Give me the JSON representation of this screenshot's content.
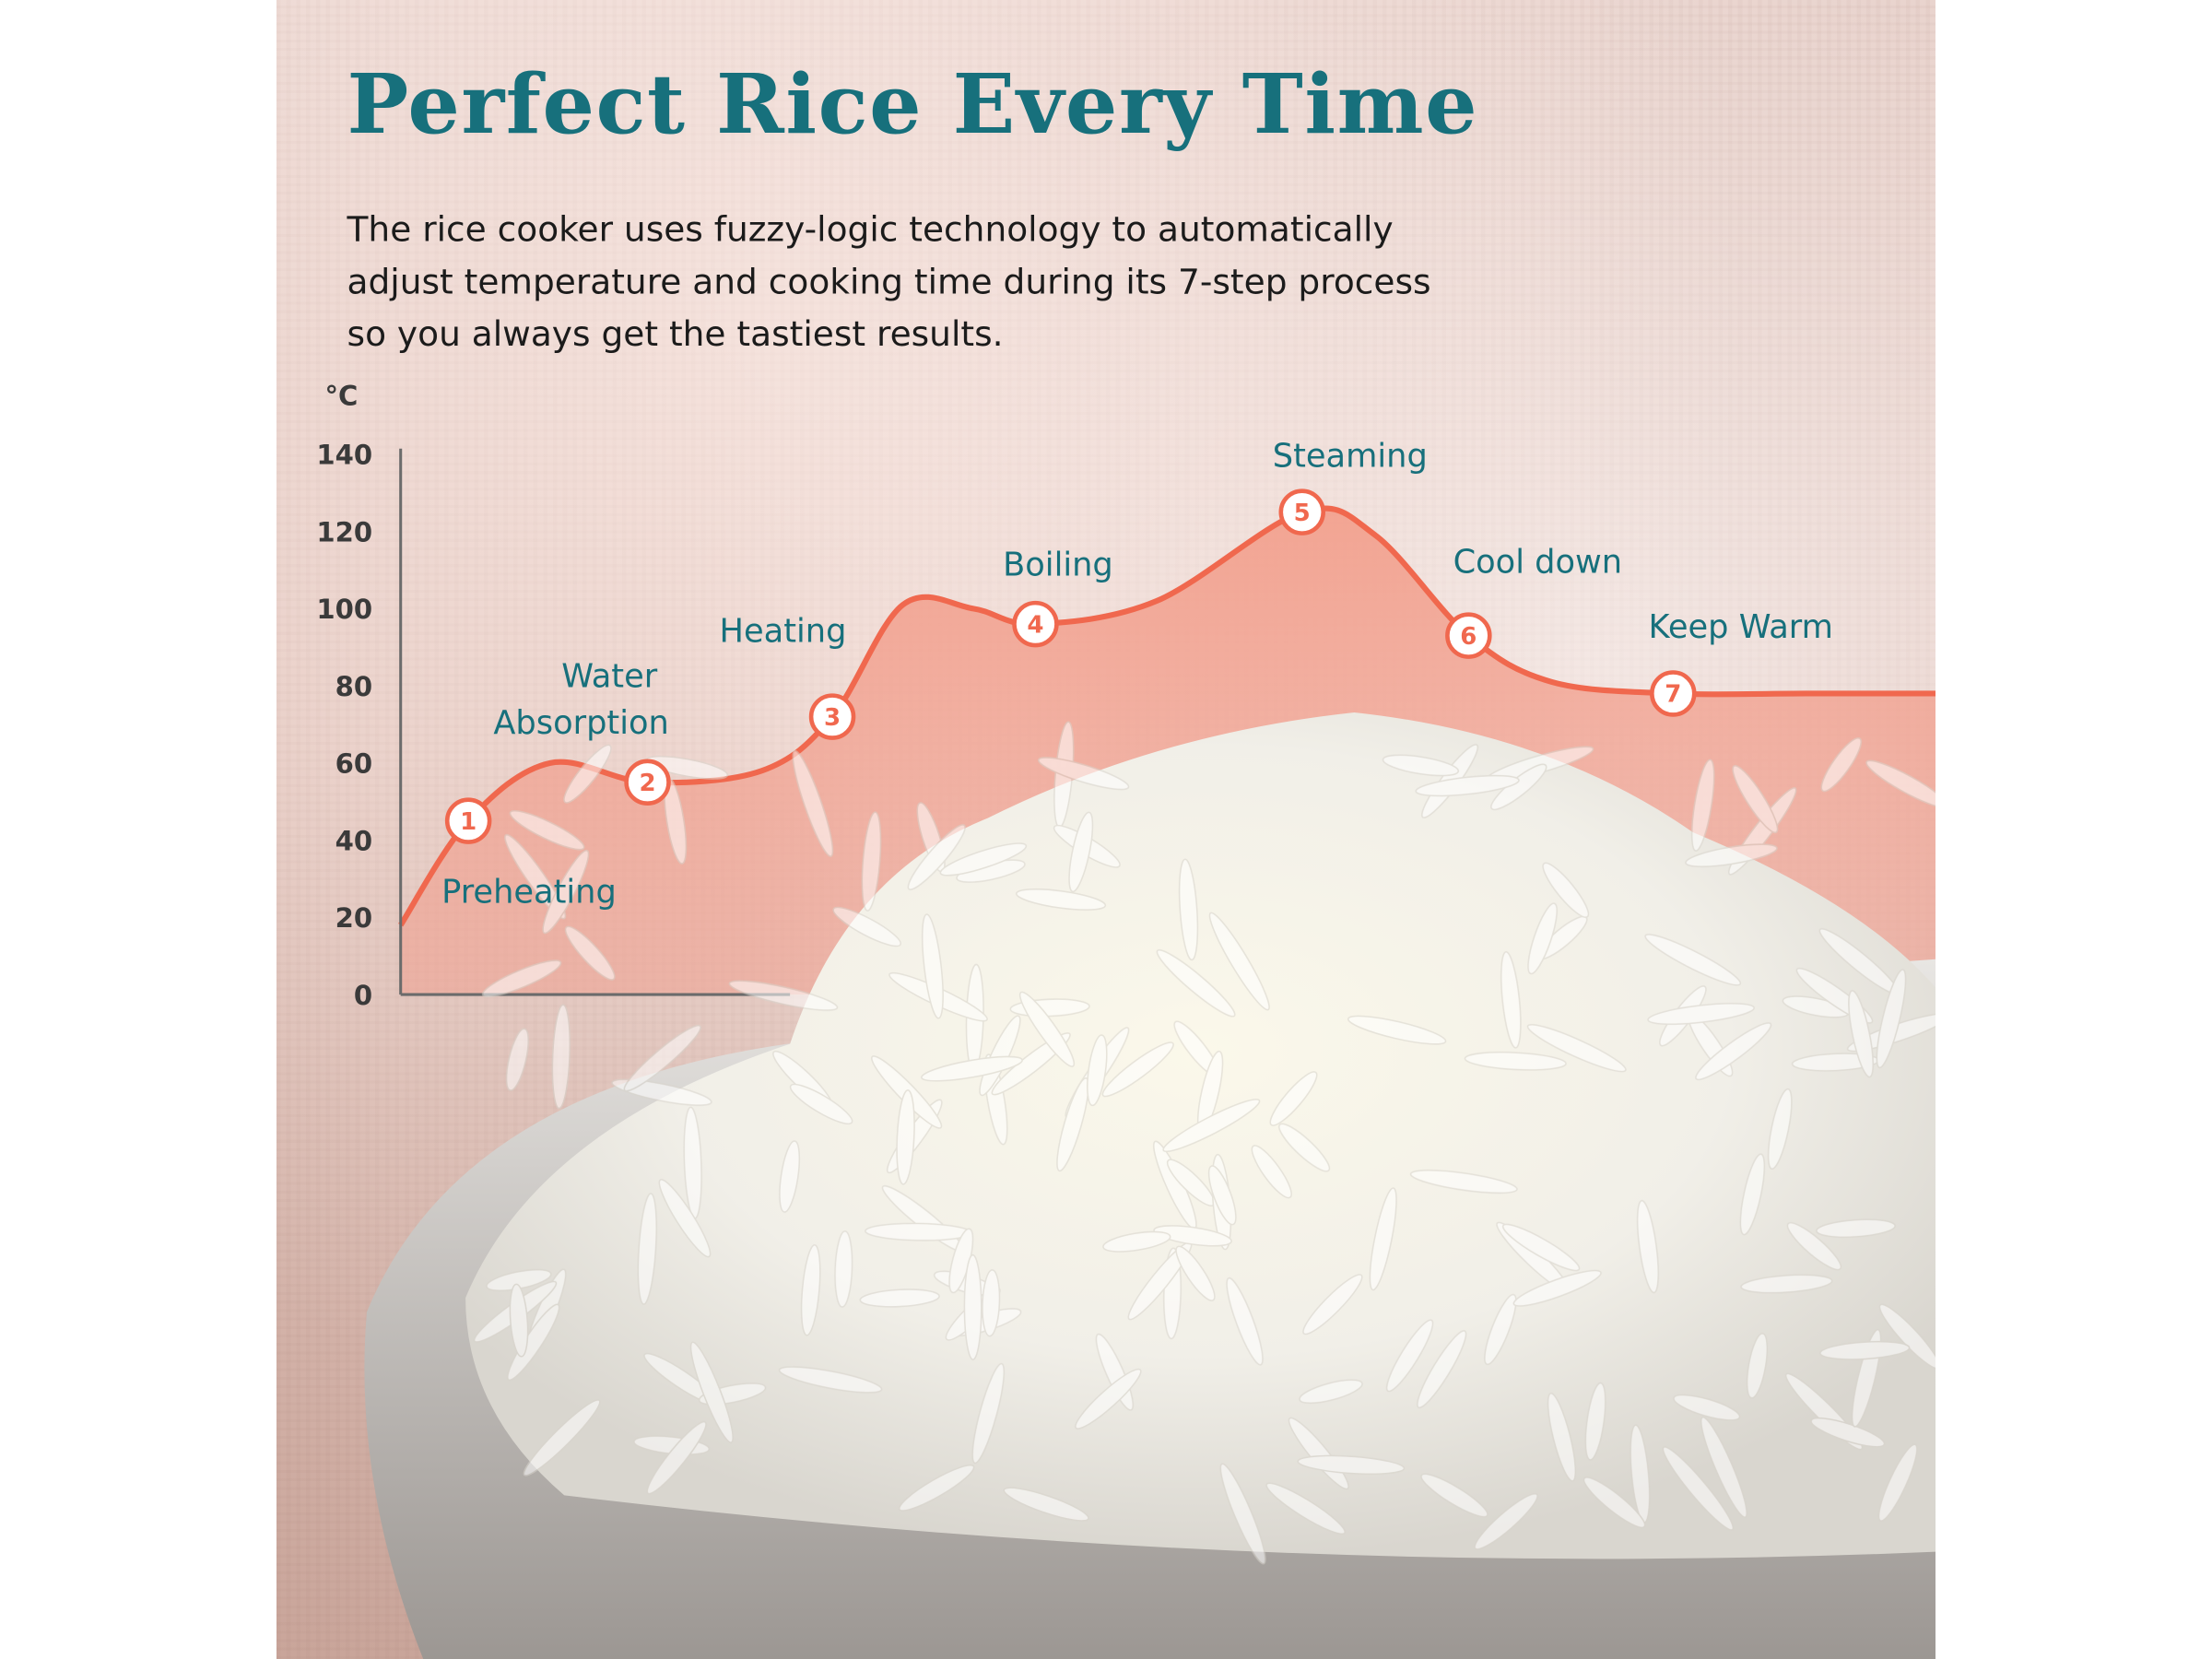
{
  "title": "Perfect Rice Every Time",
  "description": "The rice cooker uses fuzzy-logic technology to automatically adjust temperature and cooking time during its 7-step process so you always get the tastiest results.",
  "colors": {
    "title": "#17707c",
    "curve": "#f0684e",
    "fill": "#f39a86",
    "labels": "#17707c"
  },
  "chart_data": {
    "type": "area",
    "ylabel": "°C",
    "ylim": [
      0,
      140
    ],
    "yticks": [
      "0",
      "20",
      "40",
      "60",
      "80",
      "100",
      "120",
      "140"
    ],
    "grid": false,
    "steps": [
      {
        "n": "1",
        "label": "Preheating",
        "temp": 45
      },
      {
        "n": "2",
        "label": "Water Absorption",
        "label_lines": [
          "Water",
          "Absorption"
        ],
        "temp": 55
      },
      {
        "n": "3",
        "label": "Heating",
        "temp": 72
      },
      {
        "n": "4",
        "label": "Boiling",
        "temp": 96
      },
      {
        "n": "5",
        "label": "Steaming",
        "temp": 125
      },
      {
        "n": "6",
        "label": "Cool down",
        "temp": 93
      },
      {
        "n": "7",
        "label": "Keep Warm",
        "temp": 78
      }
    ],
    "start_temp": 18,
    "end_temp": 78
  }
}
